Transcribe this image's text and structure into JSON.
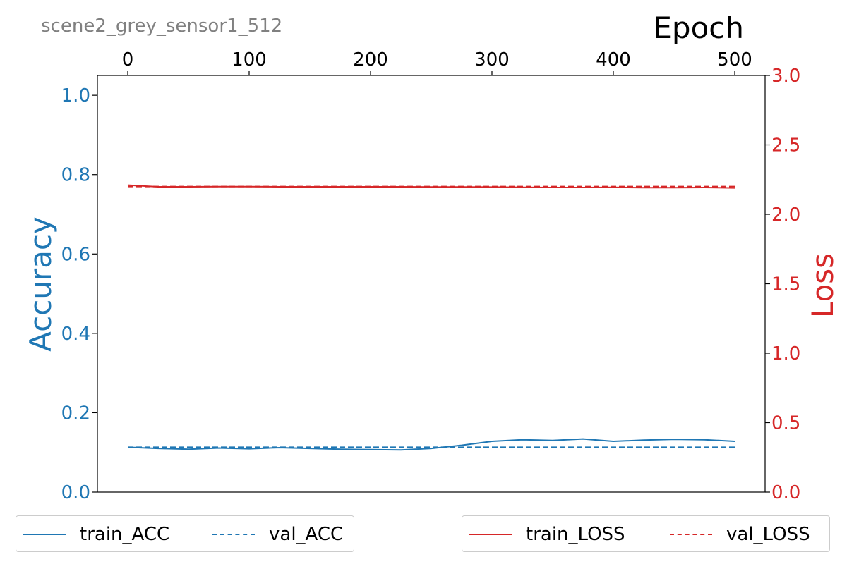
{
  "chart_data": {
    "type": "line",
    "title": "scene2_grey_sensor1_512",
    "xlabel": "Epoch",
    "xlim": [
      -25,
      525
    ],
    "x_ticks": [
      0,
      100,
      200,
      300,
      400,
      500
    ],
    "left_axis": {
      "label": "Accuracy",
      "color": "#1f77b4",
      "ylim": [
        0.0,
        1.05
      ],
      "ticks": [
        "0.0",
        "0.2",
        "0.4",
        "0.6",
        "0.8",
        "1.0"
      ]
    },
    "right_axis": {
      "label": "Loss",
      "color": "#d62728",
      "ylim": [
        0.0,
        3.0
      ],
      "ticks": [
        "0.0",
        "0.5",
        "1.0",
        "1.5",
        "2.0",
        "2.5",
        "3.0"
      ]
    },
    "grid": false,
    "legend_placement": "bottom",
    "series": [
      {
        "name": "train_ACC",
        "axis": "left",
        "style": "solid",
        "color": "#1f77b4",
        "x": [
          0,
          25,
          50,
          75,
          100,
          125,
          150,
          175,
          200,
          225,
          250,
          275,
          300,
          325,
          350,
          375,
          400,
          425,
          450,
          475,
          500
        ],
        "y": [
          0.113,
          0.11,
          0.108,
          0.111,
          0.109,
          0.112,
          0.11,
          0.108,
          0.107,
          0.106,
          0.11,
          0.118,
          0.128,
          0.132,
          0.13,
          0.134,
          0.128,
          0.131,
          0.133,
          0.132,
          0.128
        ]
      },
      {
        "name": "val_ACC",
        "axis": "left",
        "style": "dashed",
        "color": "#1f77b4",
        "x": [
          0,
          100,
          200,
          300,
          400,
          500
        ],
        "y": [
          0.113,
          0.113,
          0.113,
          0.113,
          0.113,
          0.113
        ]
      },
      {
        "name": "train_LOSS",
        "axis": "right",
        "style": "solid",
        "color": "#d62728",
        "x": [
          0,
          25,
          50,
          75,
          100,
          125,
          150,
          175,
          200,
          225,
          250,
          275,
          300,
          325,
          350,
          375,
          400,
          425,
          450,
          475,
          500
        ],
        "y": [
          2.21,
          2.198,
          2.198,
          2.199,
          2.199,
          2.198,
          2.198,
          2.198,
          2.198,
          2.198,
          2.197,
          2.197,
          2.196,
          2.194,
          2.193,
          2.193,
          2.194,
          2.192,
          2.192,
          2.193,
          2.19
        ]
      },
      {
        "name": "val_LOSS",
        "axis": "right",
        "style": "dashed",
        "color": "#d62728",
        "x": [
          0,
          100,
          200,
          300,
          400,
          500
        ],
        "y": [
          2.2,
          2.2,
          2.2,
          2.2,
          2.2,
          2.2
        ]
      }
    ]
  }
}
